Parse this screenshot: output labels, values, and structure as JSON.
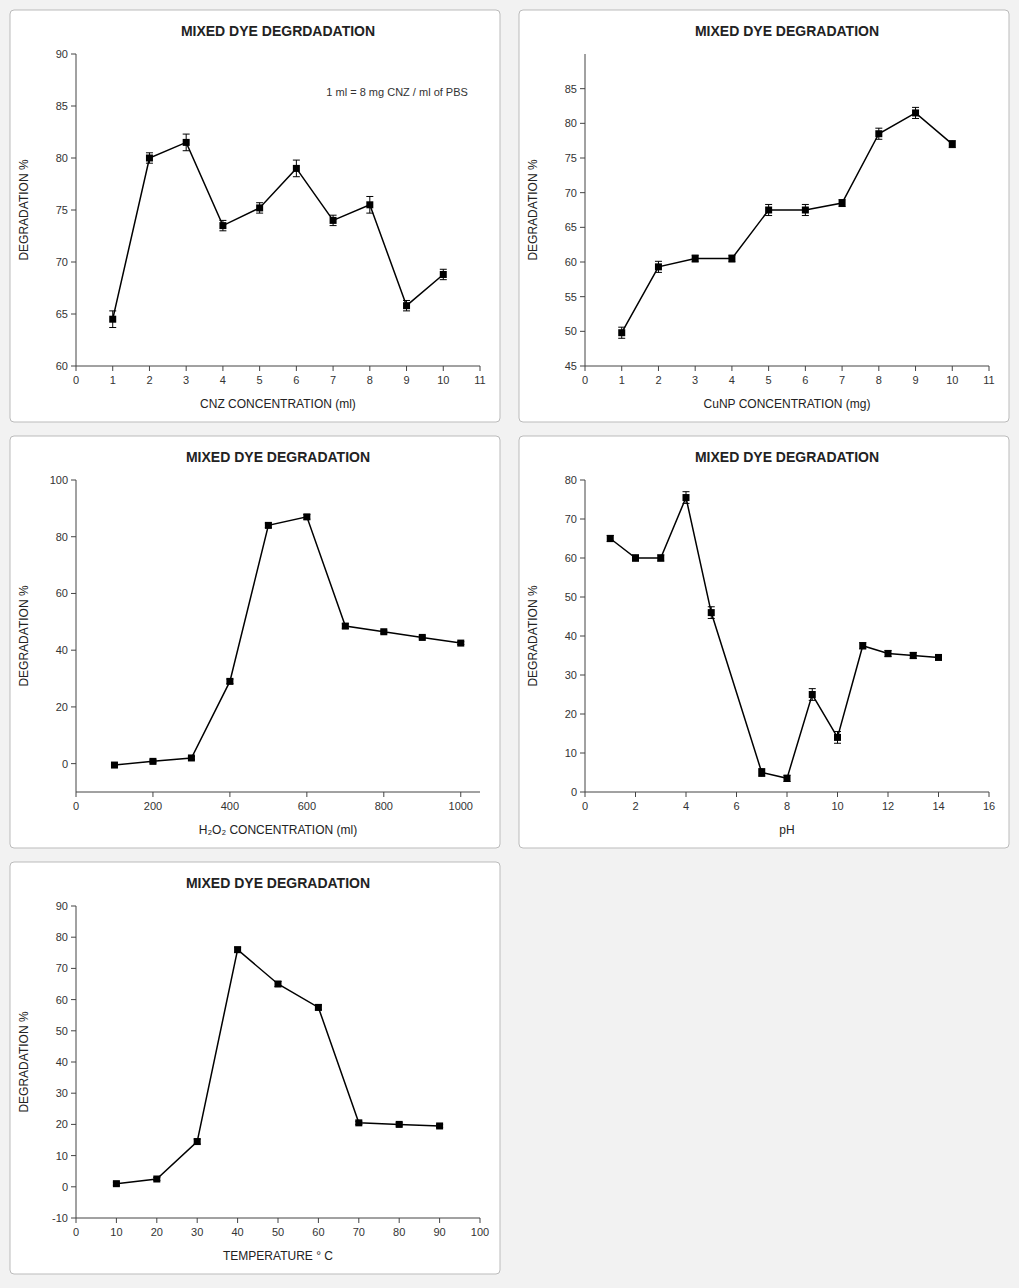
{
  "chart_data": [
    {
      "type": "line",
      "title": "MIXED DYE DEGRDADATION",
      "subtitle": "1 ml = 8 mg CNZ / ml of PBS",
      "xlabel": "CNZ CONCENTRATION (ml)",
      "ylabel": "DEGRADATION %",
      "x": [
        1,
        2,
        3,
        4,
        5,
        6,
        7,
        8,
        9,
        10
      ],
      "values": [
        64.5,
        80.0,
        81.5,
        73.5,
        75.2,
        79.0,
        74.0,
        75.5,
        65.8,
        68.8
      ],
      "errors": [
        0.8,
        0.5,
        0.8,
        0.5,
        0.5,
        0.8,
        0.5,
        0.8,
        0.5,
        0.5
      ],
      "color": "#000000",
      "marker": "square",
      "xlim": [
        0,
        11
      ],
      "ylim": [
        60,
        90
      ],
      "xticks": [
        0,
        1,
        2,
        3,
        4,
        5,
        6,
        7,
        8,
        9,
        10,
        11
      ],
      "yticks": [
        60,
        65,
        70,
        75,
        80,
        85,
        90
      ]
    },
    {
      "type": "line",
      "title": "MIXED DYE DEGRADATION",
      "xlabel": "CuNP CONCENTRATION (mg)",
      "ylabel": "DEGRADATION %",
      "x": [
        1,
        2,
        3,
        4,
        5,
        6,
        7,
        8,
        9,
        10
      ],
      "values": [
        49.8,
        59.3,
        60.5,
        60.5,
        67.5,
        67.5,
        68.5,
        78.5,
        81.5,
        77.0
      ],
      "errors": [
        0.8,
        0.8,
        0.5,
        0.5,
        0.8,
        0.8,
        0.5,
        0.8,
        0.8,
        0.5
      ],
      "color": "#000000",
      "marker": "square",
      "xlim": [
        0,
        11
      ],
      "ylim": [
        45,
        90
      ],
      "xticks": [
        0,
        1,
        2,
        3,
        4,
        5,
        6,
        7,
        8,
        9,
        10,
        11
      ],
      "yticks": [
        45,
        50,
        55,
        60,
        65,
        70,
        75,
        80,
        85
      ]
    },
    {
      "type": "line",
      "title": "MIXED DYE DEGRADATION",
      "xlabel": "H₂O₂ CONCENTRATION (ml)",
      "ylabel": "DEGRADATION %",
      "x": [
        100,
        200,
        300,
        400,
        500,
        600,
        700,
        800,
        900,
        1000
      ],
      "values": [
        -0.5,
        0.8,
        2.0,
        29.0,
        84.0,
        87.0,
        48.5,
        46.5,
        44.5,
        42.5
      ],
      "errors": [
        0.3,
        0.5,
        0.5,
        0.8,
        0.8,
        0.8,
        0.8,
        0.5,
        0.5,
        0.5
      ],
      "color": "#000000",
      "marker": "square",
      "xlim": [
        0,
        1050
      ],
      "ylim": [
        -10,
        100
      ],
      "xticks": [
        0,
        200,
        400,
        600,
        800,
        1000
      ],
      "yticks": [
        0,
        20,
        40,
        60,
        80,
        100
      ]
    },
    {
      "type": "line",
      "title": "MIXED DYE DEGRADATION",
      "xlabel": "pH",
      "ylabel": "DEGRADATION %",
      "x": [
        1,
        2,
        3,
        4,
        5,
        7,
        8,
        9,
        10,
        11,
        12,
        13,
        14
      ],
      "values": [
        65.0,
        60.0,
        60.0,
        75.5,
        46.0,
        5.0,
        3.5,
        25.0,
        14.0,
        37.5,
        35.5,
        35.0,
        34.5
      ],
      "errors": [
        0.8,
        0.8,
        0.8,
        1.5,
        1.5,
        1.0,
        0.8,
        1.5,
        1.5,
        0.8,
        0.8,
        0.8,
        0.5
      ],
      "color": "#000000",
      "marker": "square",
      "xlim": [
        0,
        16
      ],
      "ylim": [
        0,
        80
      ],
      "xticks": [
        0,
        2,
        4,
        6,
        8,
        10,
        12,
        14,
        16
      ],
      "yticks": [
        0,
        10,
        20,
        30,
        40,
        50,
        60,
        70,
        80
      ]
    },
    {
      "type": "line",
      "title": "MIXED DYE DEGRADATION",
      "xlabel": "TEMPERATURE ° C",
      "ylabel": "DEGRADATION %",
      "x": [
        10,
        20,
        30,
        40,
        50,
        60,
        70,
        80,
        90
      ],
      "values": [
        1.0,
        2.5,
        14.5,
        76.0,
        65.0,
        57.5,
        20.5,
        20.0,
        19.5
      ],
      "errors": [
        0.5,
        0.5,
        0.8,
        0.8,
        0.8,
        0.8,
        0.5,
        0.5,
        0.5
      ],
      "color": "#000000",
      "marker": "square",
      "xlim": [
        0,
        100
      ],
      "ylim": [
        -10,
        90
      ],
      "xticks": [
        0,
        10,
        20,
        30,
        40,
        50,
        60,
        70,
        80,
        90,
        100
      ],
      "yticks": [
        -10,
        0,
        10,
        20,
        30,
        40,
        50,
        60,
        70,
        80,
        90
      ]
    }
  ]
}
